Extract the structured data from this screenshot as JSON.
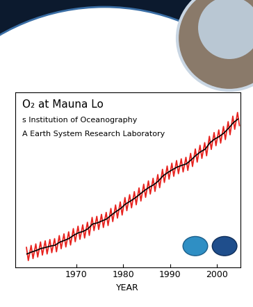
{
  "chart_data": {
    "type": "line",
    "title": "O₂ at Mauna Lo",
    "annotations": [
      "s Institution of Oceanography",
      "A Earth System Research Laboratory"
    ],
    "xlabel": "YEAR",
    "xlim": [
      1957,
      2005
    ],
    "xticks": [
      1970,
      1980,
      1990,
      2000
    ],
    "ylim": [
      310,
      390
    ],
    "tick_labels": "x",
    "grid": false,
    "series": [
      {
        "color": "#e8231f",
        "line_style": "solid",
        "x": [
          1959.4,
          1959.8,
          1960.4,
          1960.8,
          1961.4,
          1961.8,
          1962.4,
          1962.8,
          1963.4,
          1963.8,
          1964.4,
          1964.8,
          1965.4,
          1965.8,
          1966.4,
          1966.8,
          1967.4,
          1967.8,
          1968.4,
          1968.8,
          1969.4,
          1969.8,
          1970.4,
          1970.8,
          1971.4,
          1971.8,
          1972.4,
          1972.8,
          1973.4,
          1973.8,
          1974.4,
          1974.8,
          1975.4,
          1975.8,
          1976.4,
          1976.8,
          1977.4,
          1977.8,
          1978.4,
          1978.8,
          1979.4,
          1979.8,
          1980.4,
          1980.8,
          1981.4,
          1981.8,
          1982.4,
          1982.8,
          1983.4,
          1983.8,
          1984.4,
          1984.8,
          1985.4,
          1985.8,
          1986.4,
          1986.8,
          1987.4,
          1987.8,
          1988.4,
          1988.8,
          1989.4,
          1989.8,
          1990.4,
          1990.8,
          1991.4,
          1991.8,
          1992.4,
          1992.8,
          1993.4,
          1993.8,
          1994.4,
          1994.8,
          1995.4,
          1995.8,
          1996.4,
          1996.8,
          1997.4,
          1997.8,
          1998.4,
          1998.8,
          1999.4,
          1999.8,
          2000.4,
          2000.8,
          2001.4,
          2001.8,
          2002.4,
          2002.8,
          2003.4,
          2003.8,
          2004.4,
          2004.8
        ],
        "values": [
          319.0,
          313.0,
          319.9,
          313.9,
          320.6,
          314.6,
          321.5,
          315.5,
          322.0,
          316.0,
          322.6,
          316.6,
          323.0,
          317.0,
          324.4,
          318.4,
          325.2,
          319.2,
          326.1,
          320.1,
          327.6,
          321.6,
          328.7,
          322.7,
          329.3,
          323.3,
          330.5,
          324.5,
          332.7,
          326.7,
          333.2,
          327.2,
          334.1,
          328.1,
          335.0,
          329.0,
          336.8,
          330.8,
          338.4,
          332.4,
          339.8,
          333.8,
          341.8,
          335.8,
          343.1,
          337.1,
          344.5,
          338.5,
          346.2,
          340.2,
          347.9,
          341.9,
          349.4,
          343.4,
          350.6,
          344.6,
          352.3,
          346.3,
          354.7,
          348.7,
          356.2,
          350.2,
          357.5,
          351.5,
          358.7,
          352.7,
          359.5,
          353.5,
          360.2,
          354.2,
          362.0,
          356.0,
          364.0,
          358.0,
          365.7,
          359.7,
          366.9,
          360.9,
          369.8,
          363.8,
          371.5,
          365.5,
          372.7,
          366.7,
          374.3,
          368.3,
          376.5,
          370.5,
          379.0,
          373.0,
          380.7,
          374.7
        ]
      },
      {
        "color": "#000000",
        "line_style": "solid",
        "x": [
          1959.5,
          1960.5,
          1961.5,
          1962.5,
          1963.5,
          1964.5,
          1965.5,
          1966.5,
          1967.5,
          1968.5,
          1969.5,
          1970.5,
          1971.5,
          1972.5,
          1973.5,
          1974.5,
          1975.5,
          1976.5,
          1977.5,
          1978.5,
          1979.5,
          1980.5,
          1981.5,
          1982.5,
          1983.5,
          1984.5,
          1985.5,
          1986.5,
          1987.5,
          1988.5,
          1989.5,
          1990.5,
          1991.5,
          1992.5,
          1993.5,
          1994.5,
          1995.5,
          1996.5,
          1997.5,
          1998.5,
          1999.5,
          2000.5,
          2001.5,
          2002.5,
          2003.5,
          2004.5
        ],
        "values": [
          316.0,
          316.9,
          317.6,
          318.5,
          319.0,
          319.6,
          320.0,
          321.4,
          322.2,
          323.1,
          324.6,
          325.7,
          326.3,
          327.5,
          329.7,
          330.2,
          331.1,
          332.0,
          333.8,
          335.4,
          336.8,
          338.8,
          340.1,
          341.5,
          343.2,
          344.9,
          346.4,
          347.6,
          349.3,
          351.7,
          353.2,
          354.5,
          355.7,
          356.5,
          357.2,
          359.0,
          361.0,
          362.7,
          363.9,
          366.8,
          368.5,
          369.7,
          371.3,
          373.5,
          376.0,
          377.7
        ]
      }
    ]
  }
}
